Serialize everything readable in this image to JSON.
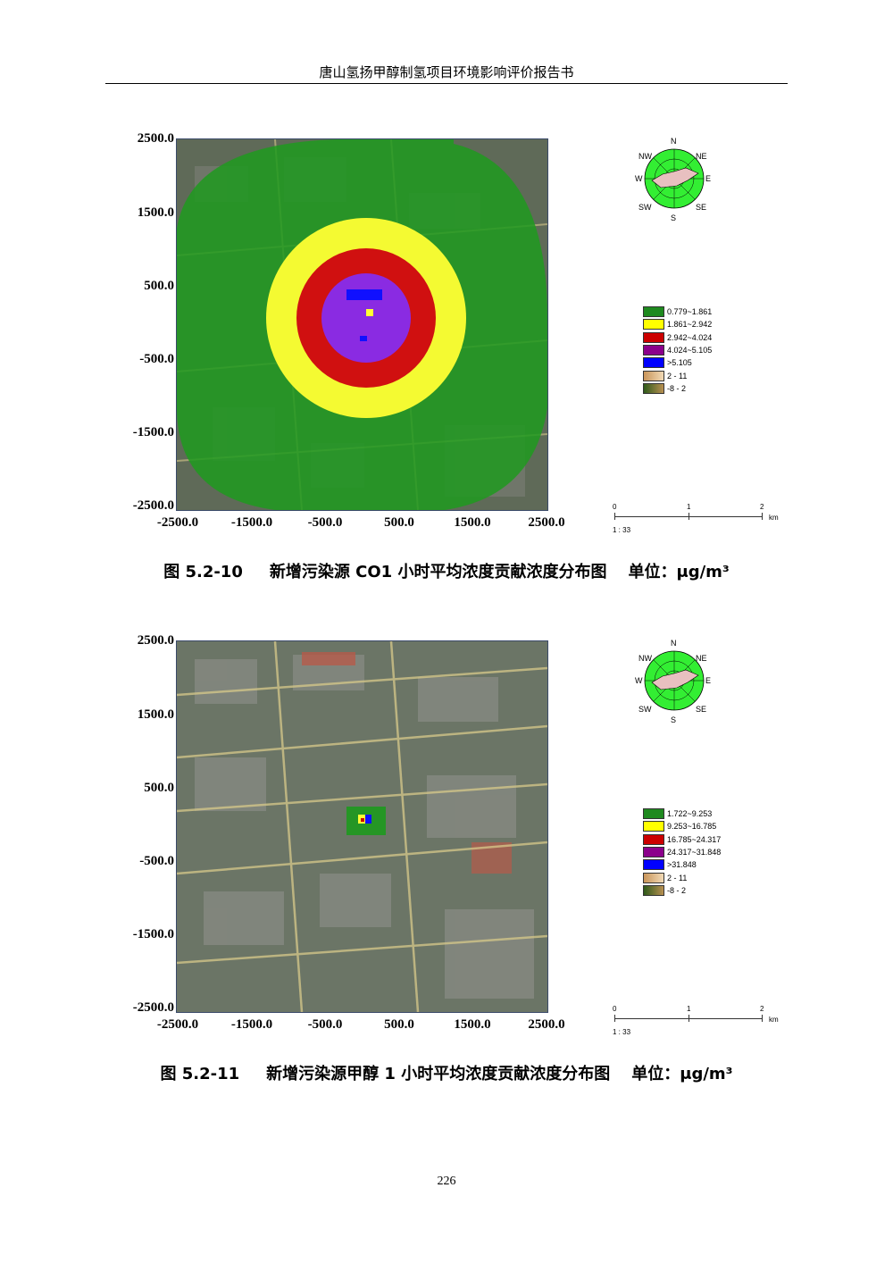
{
  "header": {
    "title": "唐山氢扬甲醇制氢项目环境影响评价报告书"
  },
  "axis_ticks": {
    "y": [
      "2500.0",
      "1500.0",
      "500.0",
      "-500.0",
      "-1500.0",
      "-2500.0"
    ],
    "x": [
      "-2500.0",
      "-1500.0",
      "-500.0",
      "500.0",
      "1500.0",
      "2500.0"
    ]
  },
  "wind_rose_labels": {
    "n": "N",
    "ne": "NE",
    "e": "E",
    "se": "SE",
    "s": "S",
    "sw": "SW",
    "w": "W",
    "nw": "NW"
  },
  "scale_bar": {
    "t0": "0",
    "t1": "1",
    "t2": "2",
    "unit": "km",
    "ratio": "1 : 33"
  },
  "figures": [
    {
      "caption_no": "图 5.2-10",
      "caption_text": "新增污染源 CO1 小时平均浓度贡献浓度分布图",
      "unit_label": "单位：μg/m³",
      "legend": [
        {
          "label": "0.779~1.861",
          "color": "#1f8a1f"
        },
        {
          "label": "1.861~2.942",
          "color": "#ffff00"
        },
        {
          "label": "2.942~4.024",
          "color": "#cc0000"
        },
        {
          "label": "4.024~5.105",
          "color": "#8b008b"
        },
        {
          "label": ">5.105",
          "color": "#0000ff"
        },
        {
          "label": "2 - 11",
          "color": "#e0b98a"
        },
        {
          "label": "-8 - 2",
          "color": "#556b2f"
        }
      ]
    },
    {
      "caption_no": "图 5.2-11",
      "caption_text": "新增污染源甲醇 1 小时平均浓度贡献浓度分布图",
      "unit_label": "单位：μg/m³",
      "legend": [
        {
          "label": "1.722~9.253",
          "color": "#1f8a1f"
        },
        {
          "label": "9.253~16.785",
          "color": "#ffff00"
        },
        {
          "label": "16.785~24.317",
          "color": "#cc0000"
        },
        {
          "label": "24.317~31.848",
          "color": "#8b008b"
        },
        {
          "label": ">31.848",
          "color": "#0000ff"
        },
        {
          "label": "2 - 11",
          "color": "#e0b98a"
        },
        {
          "label": "-8 - 2",
          "color": "#556b2f"
        }
      ]
    }
  ],
  "page_number": "226"
}
